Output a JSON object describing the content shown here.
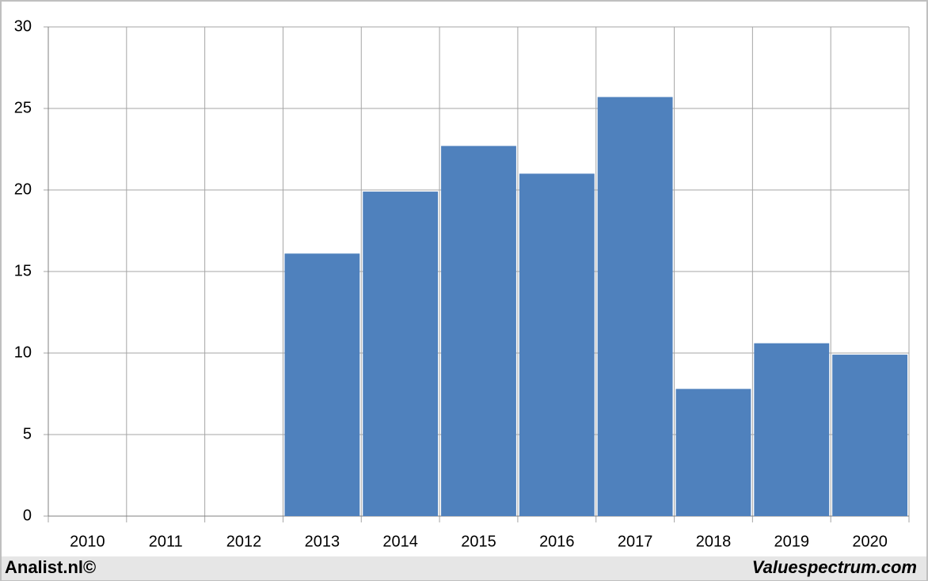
{
  "chart_data": {
    "type": "bar",
    "categories": [
      "2010",
      "2011",
      "2012",
      "2013",
      "2014",
      "2015",
      "2016",
      "2017",
      "2018",
      "2019",
      "2020"
    ],
    "values": [
      null,
      null,
      null,
      16.1,
      19.9,
      22.7,
      21.0,
      25.7,
      7.8,
      10.6,
      9.9
    ],
    "color": "#4f81bd",
    "ylim": [
      0,
      30
    ],
    "yticks": [
      0,
      5,
      10,
      15,
      20,
      25,
      30
    ],
    "grid": true
  },
  "footer": {
    "left": "Analist.nl©",
    "right": "Valuespectrum.com"
  }
}
